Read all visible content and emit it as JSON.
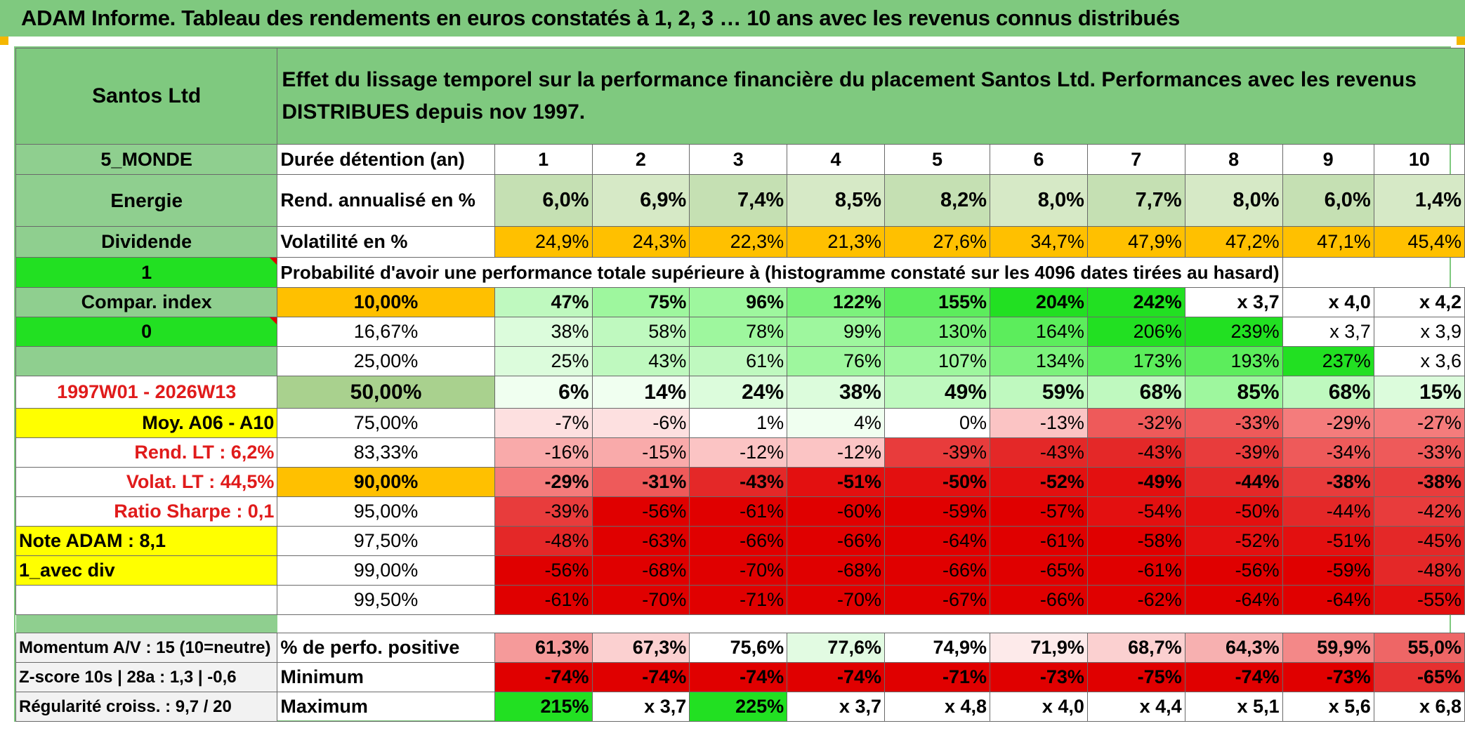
{
  "title": "ADAM Informe. Tableau des rendements en euros constatés à 1, 2, 3 … 10 ans avec les revenus connus distribués",
  "header": {
    "company": "Santos Ltd",
    "description": "Effet du lissage temporel sur la performance financière du placement Santos Ltd. Performances avec les revenus DISTRIBUES depuis nov 1997."
  },
  "side": {
    "region": "5_MONDE",
    "sector": "Energie",
    "dividend": "Dividende",
    "value1": "1",
    "compar_index": "Compar. index",
    "value0": "0",
    "period": "1997W01 - 2026W13",
    "moy": "Moy. A06 - A10",
    "rend_lt": "Rend. LT :   6,2%",
    "volat_lt": "Volat. LT :   44,5%",
    "sharpe": "Ratio Sharpe :    0,1",
    "note": "Note ADAM : 8,1",
    "avec_div": "1_avec div"
  },
  "years_label": "Durée détention (an)",
  "years": [
    "1",
    "2",
    "3",
    "4",
    "5",
    "6",
    "7",
    "8",
    "9",
    "10"
  ],
  "rend_label": "Rend. annualisé en %",
  "rend": [
    "6,0%",
    "6,9%",
    "7,4%",
    "8,5%",
    "8,2%",
    "8,0%",
    "7,7%",
    "8,0%",
    "6,0%",
    "1,4%"
  ],
  "vol_label": "Volatilité en %",
  "vol": [
    "24,9%",
    "24,3%",
    "22,3%",
    "21,3%",
    "27,6%",
    "34,7%",
    "47,9%",
    "47,2%",
    "47,1%",
    "45,4%"
  ],
  "prob_label": "Probabilité d'avoir une performance totale supérieure à (histogramme constaté sur les 4096 dates tirées au hasard)",
  "prob_rows": [
    {
      "p": "10,00%",
      "v": [
        "47%",
        "75%",
        "96%",
        "122%",
        "155%",
        "204%",
        "242%",
        "x 3,7",
        "x 4,0",
        "x 4,2"
      ]
    },
    {
      "p": "16,67%",
      "v": [
        "38%",
        "58%",
        "78%",
        "99%",
        "130%",
        "164%",
        "206%",
        "239%",
        "x 3,7",
        "x 3,9"
      ]
    },
    {
      "p": "25,00%",
      "v": [
        "25%",
        "43%",
        "61%",
        "76%",
        "107%",
        "134%",
        "173%",
        "193%",
        "237%",
        "x 3,6"
      ]
    },
    {
      "p": "50,00%",
      "v": [
        "6%",
        "14%",
        "24%",
        "38%",
        "49%",
        "59%",
        "68%",
        "85%",
        "68%",
        "15%"
      ]
    },
    {
      "p": "75,00%",
      "v": [
        "-7%",
        "-6%",
        "1%",
        "4%",
        "0%",
        "-13%",
        "-32%",
        "-33%",
        "-29%",
        "-27%"
      ]
    },
    {
      "p": "83,33%",
      "v": [
        "-16%",
        "-15%",
        "-12%",
        "-12%",
        "-39%",
        "-43%",
        "-43%",
        "-39%",
        "-34%",
        "-33%"
      ]
    },
    {
      "p": "90,00%",
      "v": [
        "-29%",
        "-31%",
        "-43%",
        "-51%",
        "-50%",
        "-52%",
        "-49%",
        "-44%",
        "-38%",
        "-38%"
      ]
    },
    {
      "p": "95,00%",
      "v": [
        "-39%",
        "-56%",
        "-61%",
        "-60%",
        "-59%",
        "-57%",
        "-54%",
        "-50%",
        "-44%",
        "-42%"
      ]
    },
    {
      "p": "97,50%",
      "v": [
        "-48%",
        "-63%",
        "-66%",
        "-66%",
        "-64%",
        "-61%",
        "-58%",
        "-52%",
        "-51%",
        "-45%"
      ]
    },
    {
      "p": "99,00%",
      "v": [
        "-56%",
        "-68%",
        "-70%",
        "-68%",
        "-66%",
        "-65%",
        "-61%",
        "-56%",
        "-59%",
        "-48%"
      ]
    },
    {
      "p": "99,50%",
      "v": [
        "-61%",
        "-70%",
        "-71%",
        "-70%",
        "-67%",
        "-66%",
        "-62%",
        "-64%",
        "-64%",
        "-55%"
      ]
    }
  ],
  "bottom": {
    "momentum": "Momentum A/V : 15 (10=neutre)",
    "zscore": "Z-score 10s | 28a : 1,3 | -0,6",
    "regularite": "Régularité croiss. : 9,7 / 20",
    "pos_label": "% de perfo. positive",
    "pos": [
      "61,3%",
      "67,3%",
      "75,6%",
      "77,6%",
      "74,9%",
      "71,9%",
      "68,7%",
      "64,3%",
      "59,9%",
      "55,0%"
    ],
    "min_label": "Minimum",
    "min": [
      "-74%",
      "-74%",
      "-74%",
      "-74%",
      "-71%",
      "-73%",
      "-75%",
      "-74%",
      "-73%",
      "-65%"
    ],
    "max_label": "Maximum",
    "max": [
      "215%",
      "x 3,7",
      "225%",
      "x 3,7",
      "x 4,8",
      "x 4,0",
      "x 4,4",
      "x 5,1",
      "x 5,6",
      "x 6,8"
    ]
  },
  "colors": {
    "header_green": "#7fc97f",
    "lime": "#22e022",
    "orange": "#ffc000",
    "yellow": "#ffff00",
    "red_text": "#e01b1b"
  }
}
